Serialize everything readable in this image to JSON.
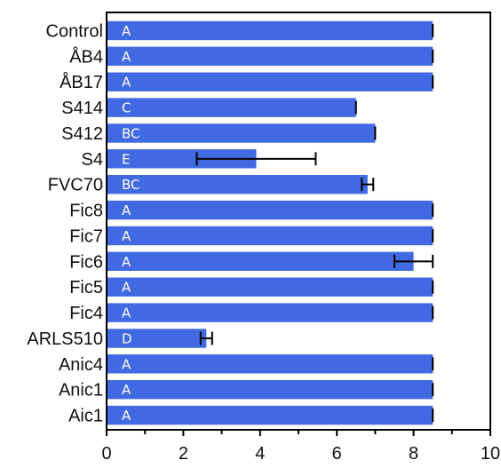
{
  "chart_data": {
    "type": "bar",
    "orientation": "horizontal",
    "categories": [
      "Control",
      "ÅB4",
      "ÅB17",
      "S414",
      "S412",
      "S4",
      "FVC70",
      "Fic8",
      "Fic7",
      "Fic6",
      "Fic5",
      "Fic4",
      "ARLS510",
      "Anic4",
      "Anic1",
      "Aic1"
    ],
    "values": [
      8.5,
      8.5,
      8.5,
      6.5,
      7.0,
      3.9,
      6.8,
      8.5,
      8.5,
      8.0,
      8.5,
      8.5,
      2.6,
      8.5,
      8.5,
      8.5
    ],
    "errors": [
      0,
      0,
      0,
      0,
      0,
      1.55,
      0.15,
      0,
      0,
      0.5,
      0,
      0,
      0.15,
      0,
      0,
      0
    ],
    "group_labels": [
      "A",
      "A",
      "A",
      "C",
      "BC",
      "E",
      "BC",
      "A",
      "A",
      "A",
      "A",
      "A",
      "D",
      "A",
      "A",
      "A"
    ],
    "xlim": [
      0,
      10
    ],
    "xticks": [
      "0",
      "2",
      "4",
      "6",
      "8",
      "10"
    ],
    "bar_color": "#4169e1",
    "title": "",
    "xlabel": "",
    "ylabel": ""
  }
}
